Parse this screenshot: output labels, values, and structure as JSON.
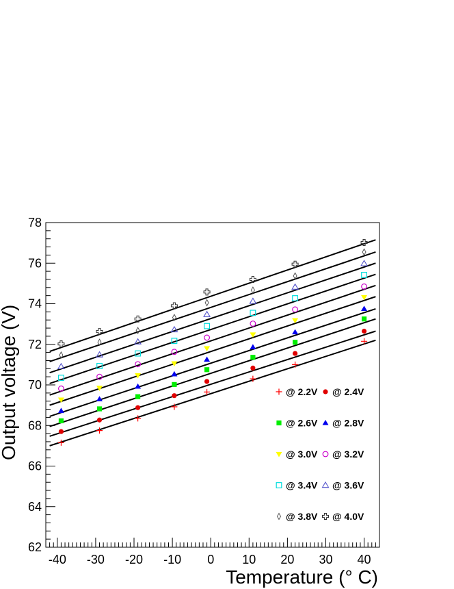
{
  "chart_data": {
    "type": "scatter",
    "title": "",
    "xlabel": "Temperature (° C)",
    "ylabel": "Output voltage (V)",
    "xlim": [
      -43,
      44
    ],
    "ylim": [
      62,
      78
    ],
    "x_ticks": [
      -40,
      -30,
      -20,
      -10,
      0,
      10,
      20,
      30,
      40
    ],
    "y_ticks": [
      62,
      64,
      66,
      68,
      70,
      72,
      74,
      76,
      78
    ],
    "x": [
      -39,
      -29,
      -19,
      -9.5,
      -1,
      11,
      22,
      40
    ],
    "grid": false,
    "legend_position": "lower-right",
    "series": [
      {
        "name": "@ 2.2V",
        "marker": "plus",
        "color": "#ff0000",
        "values": [
          67.15,
          67.75,
          68.35,
          68.92,
          69.65,
          70.3,
          71.0,
          72.15
        ],
        "fit": [
          -42,
          67.0,
          43,
          72.2
        ]
      },
      {
        "name": "@ 2.4V",
        "marker": "circle-filled",
        "color": "#e00000",
        "values": [
          67.7,
          68.27,
          68.88,
          69.47,
          70.17,
          70.83,
          71.55,
          72.65
        ],
        "fit": [
          -42,
          67.47,
          43,
          72.65
        ]
      },
      {
        "name": "@ 2.6V",
        "marker": "square-filled",
        "color": "#00ee00",
        "values": [
          68.23,
          68.82,
          69.42,
          70.02,
          70.75,
          71.36,
          72.1,
          73.25
        ],
        "fit": [
          -42,
          67.95,
          43,
          73.25
        ]
      },
      {
        "name": "@ 2.8V",
        "marker": "triangle-up-filled",
        "color": "#0000ee",
        "values": [
          68.72,
          69.3,
          69.92,
          70.53,
          71.25,
          71.86,
          72.6,
          73.75
        ],
        "fit": [
          -42,
          68.45,
          43,
          73.75
        ]
      },
      {
        "name": "@ 3.0V",
        "marker": "triangle-down-filled",
        "color": "#ffff00",
        "values": [
          69.27,
          69.85,
          70.47,
          71.06,
          71.8,
          72.48,
          73.18,
          74.32
        ],
        "fit": [
          -42,
          69.0,
          43,
          74.35
        ]
      },
      {
        "name": "@ 3.2V",
        "marker": "circle-open",
        "color": "#cc00cc",
        "values": [
          69.82,
          70.4,
          71.02,
          71.63,
          72.33,
          73.02,
          73.72,
          74.85
        ],
        "fit": [
          -42,
          69.5,
          43,
          74.9
        ]
      },
      {
        "name": "@ 3.4V",
        "marker": "square-open",
        "color": "#00dddd",
        "values": [
          70.35,
          70.93,
          71.55,
          72.17,
          72.9,
          73.55,
          74.27,
          75.42
        ],
        "fit": [
          -42,
          70.07,
          43,
          75.45
        ]
      },
      {
        "name": "@ 3.6V",
        "marker": "triangle-up-open",
        "color": "#5555cc",
        "values": [
          70.9,
          71.48,
          72.12,
          72.72,
          73.47,
          74.12,
          74.82,
          75.98
        ],
        "fit": [
          -42,
          70.6,
          43,
          76.0
        ]
      },
      {
        "name": "@ 3.8V",
        "marker": "diamond-open",
        "color": "#555555",
        "values": [
          71.47,
          72.1,
          72.68,
          73.32,
          74.05,
          74.67,
          75.37,
          76.55
        ],
        "fit": [
          -42,
          71.15,
          43,
          76.55
        ]
      },
      {
        "name": "@ 4.0V",
        "marker": "cross-open",
        "color": "#333333",
        "values": [
          72.02,
          72.63,
          73.25,
          73.9,
          74.58,
          75.2,
          75.95,
          77.02
        ],
        "fit": [
          -42,
          71.65,
          43,
          77.15
        ]
      }
    ]
  }
}
